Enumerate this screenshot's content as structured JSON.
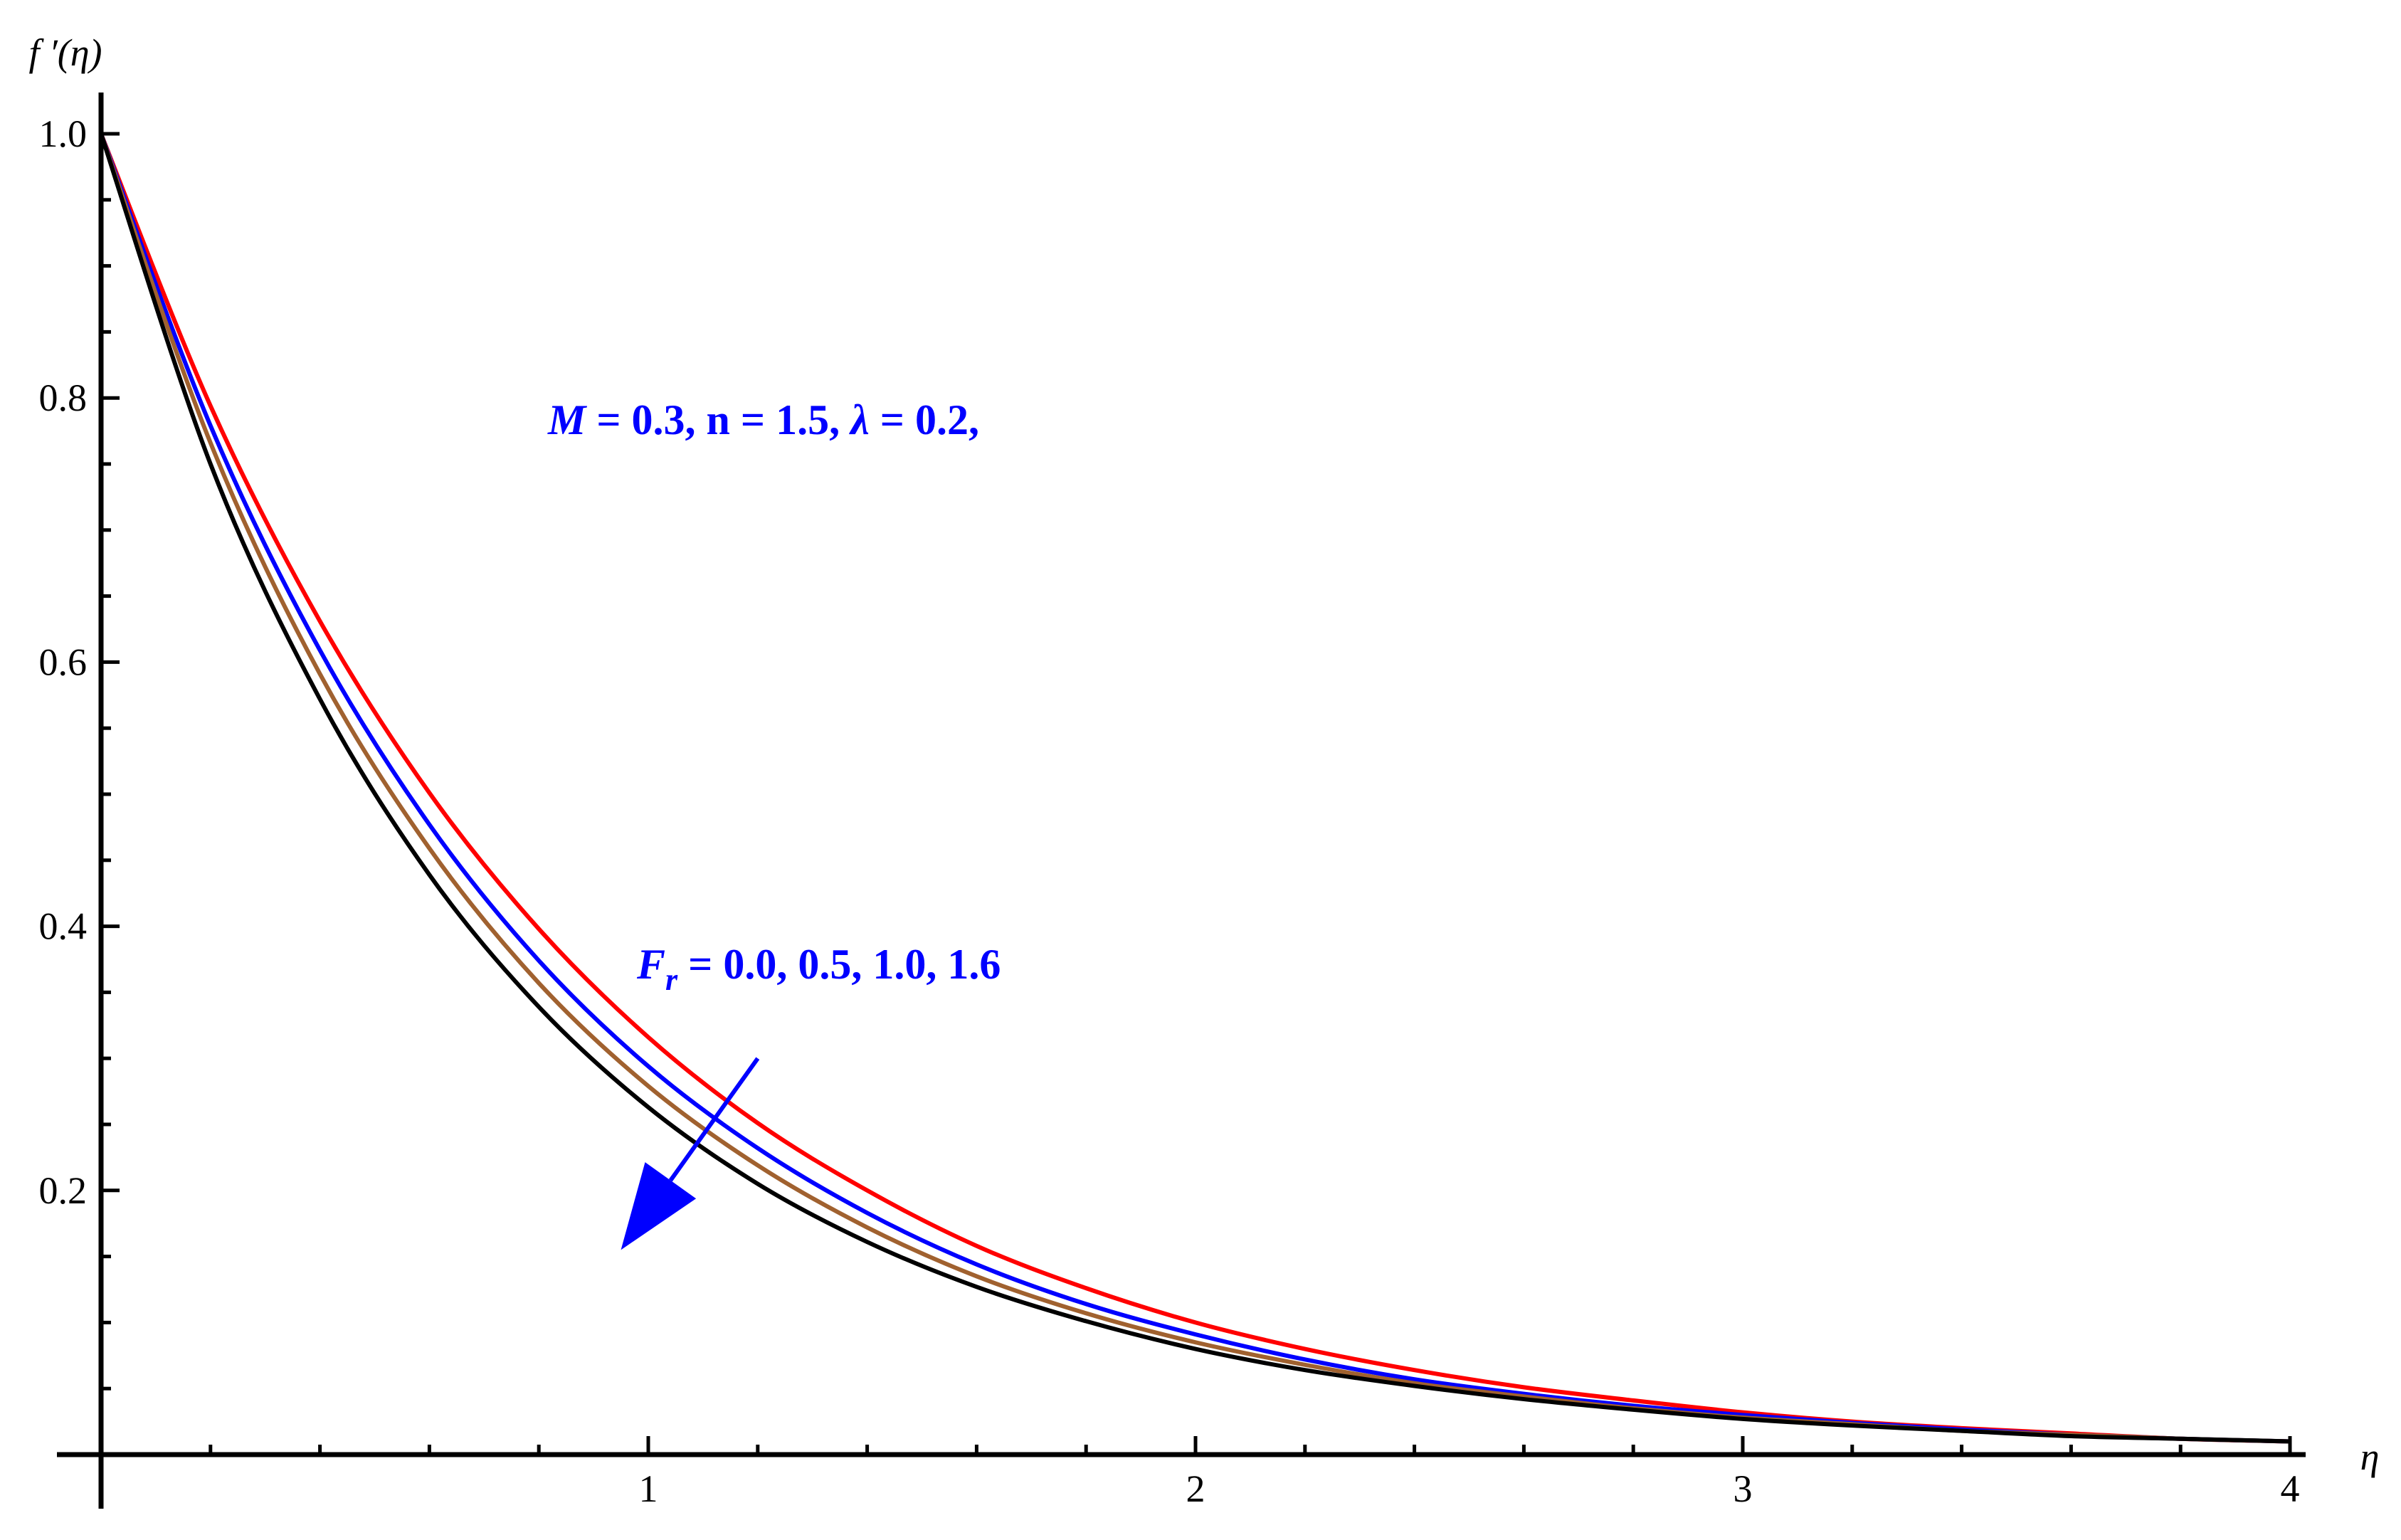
{
  "chart_data": {
    "type": "line",
    "xlabel": "η",
    "ylabel": "f ′(η)",
    "xlim": [
      0,
      4
    ],
    "ylim": [
      0,
      1.0
    ],
    "x_ticks": [
      {
        "value": 1,
        "label": "1"
      },
      {
        "value": 2,
        "label": "2"
      },
      {
        "value": 3,
        "label": "3"
      },
      {
        "value": 4,
        "label": "4"
      }
    ],
    "y_ticks": [
      {
        "value": 0.2,
        "label": "0.2"
      },
      {
        "value": 0.4,
        "label": "0.4"
      },
      {
        "value": 0.6,
        "label": "0.6"
      },
      {
        "value": 0.8,
        "label": "0.8"
      },
      {
        "value": 1.0,
        "label": "1.0"
      }
    ],
    "x": [
      0,
      0.2,
      0.4,
      0.6,
      0.8,
      1.0,
      1.2,
      1.4,
      1.6,
      1.8,
      2.0,
      2.2,
      2.4,
      2.6,
      2.8,
      3.0,
      3.2,
      3.4,
      3.6,
      3.8,
      4.0
    ],
    "series": [
      {
        "color": "#ff0000",
        "values": [
          1.0,
          0.794,
          0.631,
          0.501,
          0.398,
          0.316,
          0.251,
          0.2,
          0.158,
          0.126,
          0.1,
          0.08,
          0.064,
          0.051,
          0.041,
          0.032,
          0.025,
          0.02,
          0.016,
          0.012,
          0.01
        ]
      },
      {
        "color": "#0000ff",
        "values": [
          1.0,
          0.779,
          0.609,
          0.477,
          0.374,
          0.294,
          0.232,
          0.183,
          0.144,
          0.114,
          0.091,
          0.072,
          0.057,
          0.046,
          0.037,
          0.03,
          0.024,
          0.019,
          0.015,
          0.012,
          0.01
        ]
      },
      {
        "color": "#a0612f",
        "values": [
          1.0,
          0.766,
          0.591,
          0.459,
          0.357,
          0.279,
          0.219,
          0.172,
          0.135,
          0.107,
          0.085,
          0.068,
          0.054,
          0.044,
          0.035,
          0.028,
          0.023,
          0.018,
          0.015,
          0.012,
          0.01
        ]
      },
      {
        "color": "#000000",
        "values": [
          1.0,
          0.75,
          0.572,
          0.439,
          0.339,
          0.263,
          0.205,
          0.161,
          0.127,
          0.101,
          0.08,
          0.064,
          0.052,
          0.042,
          0.034,
          0.027,
          0.022,
          0.018,
          0.014,
          0.012,
          0.01
        ]
      }
    ],
    "annotations": {
      "params": {
        "M": "M",
        "rest": " =  0.3, n = 1.5, ",
        "lambda": "λ",
        "lambda_value": " = 0.2,"
      },
      "fr": {
        "F": "F",
        "sub": "r",
        "values": " = 0.0, 0.5, 1.0, 1.6"
      },
      "arrow": {
        "from": [
          1.2,
          0.3
        ],
        "to": [
          0.95,
          0.155
        ],
        "color": "#0000ff"
      }
    },
    "grid": false,
    "legend": "none"
  }
}
